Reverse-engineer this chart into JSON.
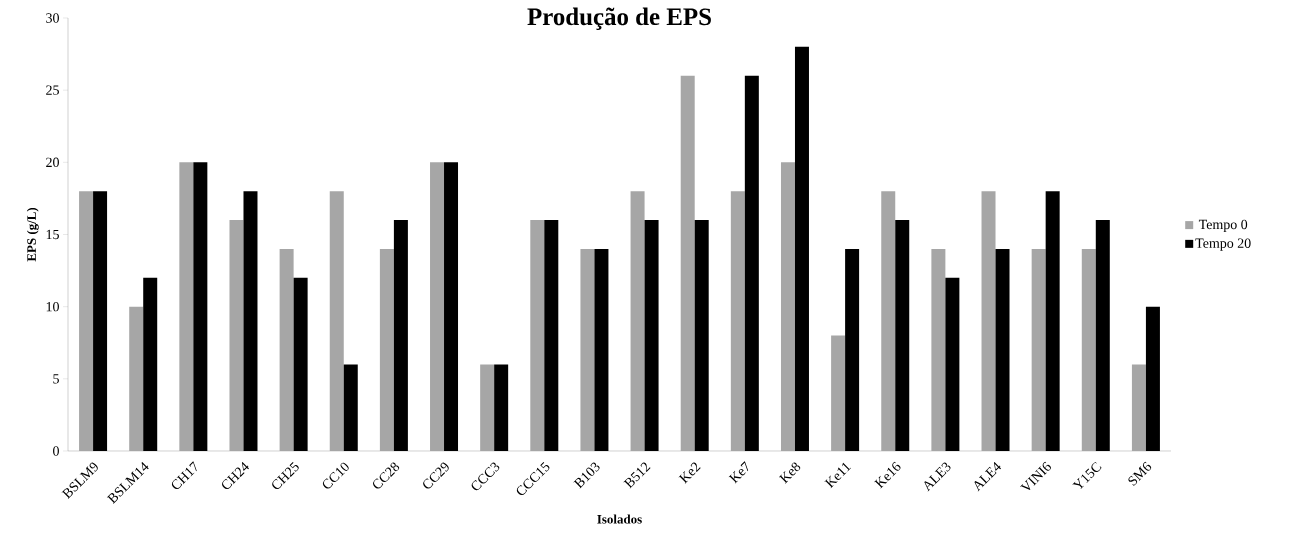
{
  "chart_data": {
    "type": "bar",
    "title": "Produção de EPS",
    "xlabel": "Isolados",
    "ylabel": "EPS (g/L)",
    "categories": [
      "BSLM9",
      "BSLM14",
      "CH17",
      "CH24",
      "CH25",
      "CC10",
      "CC28",
      "CC29",
      "CCC3",
      "CCC15",
      "B103",
      "B512",
      "Ke2",
      "Ke7",
      "Ke8",
      "Ke11",
      "Ke16",
      "ALE3",
      "ALE4",
      "VINI6",
      "Y15C",
      "SM6"
    ],
    "series": [
      {
        "name": "Tempo 0",
        "color": "#a6a6a6",
        "values": [
          18,
          10,
          20,
          16,
          14,
          18,
          14,
          20,
          6,
          16,
          14,
          18,
          26,
          18,
          20,
          8,
          18,
          14,
          18,
          14,
          14,
          6
        ]
      },
      {
        "name": "Tempo 20",
        "color": "#000000",
        "values": [
          18,
          12,
          20,
          18,
          12,
          6,
          16,
          20,
          6,
          16,
          14,
          16,
          16,
          26,
          28,
          14,
          16,
          12,
          14,
          18,
          16,
          10
        ]
      }
    ],
    "ylim": [
      0,
      30
    ],
    "yticks": [
      0,
      5,
      10,
      15,
      20,
      25,
      30
    ],
    "grid": false,
    "legend": "right"
  }
}
